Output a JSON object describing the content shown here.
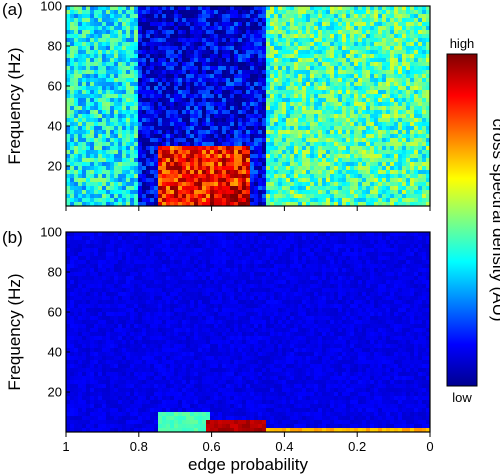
{
  "chart_data": [
    {
      "type": "heatmap",
      "panel_label": "(a)",
      "xlabel": "",
      "ylabel": "Frequency (Hz)",
      "xlim": [
        1,
        0
      ],
      "ylim": [
        0,
        100
      ],
      "x_ticks": [
        1,
        0.8,
        0.6,
        0.4,
        0.2,
        0
      ],
      "y_ticks": [
        20,
        40,
        60,
        80,
        100
      ],
      "y_tick_labels": [
        "20",
        "40",
        "60",
        "80",
        "100"
      ],
      "description_of_values": "relative cross spectral density (0 = low, 1 = high)",
      "regions": [
        {
          "edge_probability": [
            1.0,
            0.8
          ],
          "frequency": [
            0,
            100
          ],
          "level": 0.38
        },
        {
          "edge_probability": [
            0.75,
            0.5
          ],
          "frequency": [
            0,
            30
          ],
          "level": 0.85
        },
        {
          "edge_probability": [
            0.6,
            0.5
          ],
          "frequency": [
            0,
            10
          ],
          "level": 0.95
        },
        {
          "edge_probability": [
            0.45,
            0.0
          ],
          "frequency": [
            0,
            100
          ],
          "level": 0.45
        },
        {
          "edge_probability": [
            0.8,
            0.55
          ],
          "frequency": [
            70,
            100
          ],
          "level": 0.08
        }
      ]
    },
    {
      "type": "heatmap",
      "panel_label": "(b)",
      "xlabel": "edge probability",
      "ylabel": "Frequency (Hz)",
      "xlim": [
        1,
        0
      ],
      "ylim": [
        0,
        100
      ],
      "x_ticks": [
        1,
        0.8,
        0.6,
        0.4,
        0.2,
        0
      ],
      "x_tick_labels": [
        "1",
        "0.8",
        "0.6",
        "0.4",
        "0.2",
        "0"
      ],
      "y_ticks": [
        20,
        40,
        60,
        80,
        100
      ],
      "y_tick_labels": [
        "20",
        "40",
        "60",
        "80",
        "100"
      ],
      "description_of_values": "relative cross spectral density (0 = low, 1 = high)",
      "regions": [
        {
          "edge_probability": [
            0.75,
            0.6
          ],
          "frequency": [
            0,
            30
          ],
          "level": 0.45
        },
        {
          "edge_probability": [
            0.62,
            0.45
          ],
          "frequency": [
            0,
            6
          ],
          "level": 0.95
        },
        {
          "edge_probability": [
            0.45,
            0.0
          ],
          "frequency": [
            0,
            3
          ],
          "level": 0.7
        },
        {
          "edge_probability": [
            1.0,
            0.0
          ],
          "frequency": [
            10,
            100
          ],
          "level": 0.1
        }
      ]
    }
  ],
  "colorbar": {
    "label": "cross spectral density (AU)",
    "top_label": "high",
    "bottom_label": "low",
    "colormap": [
      "#00008f",
      "#0000ff",
      "#0080ff",
      "#00ffff",
      "#80ff80",
      "#ffff00",
      "#ff8000",
      "#ff0000",
      "#800000"
    ]
  },
  "colors": {
    "axis": "#000000",
    "background": "#ffffff"
  }
}
